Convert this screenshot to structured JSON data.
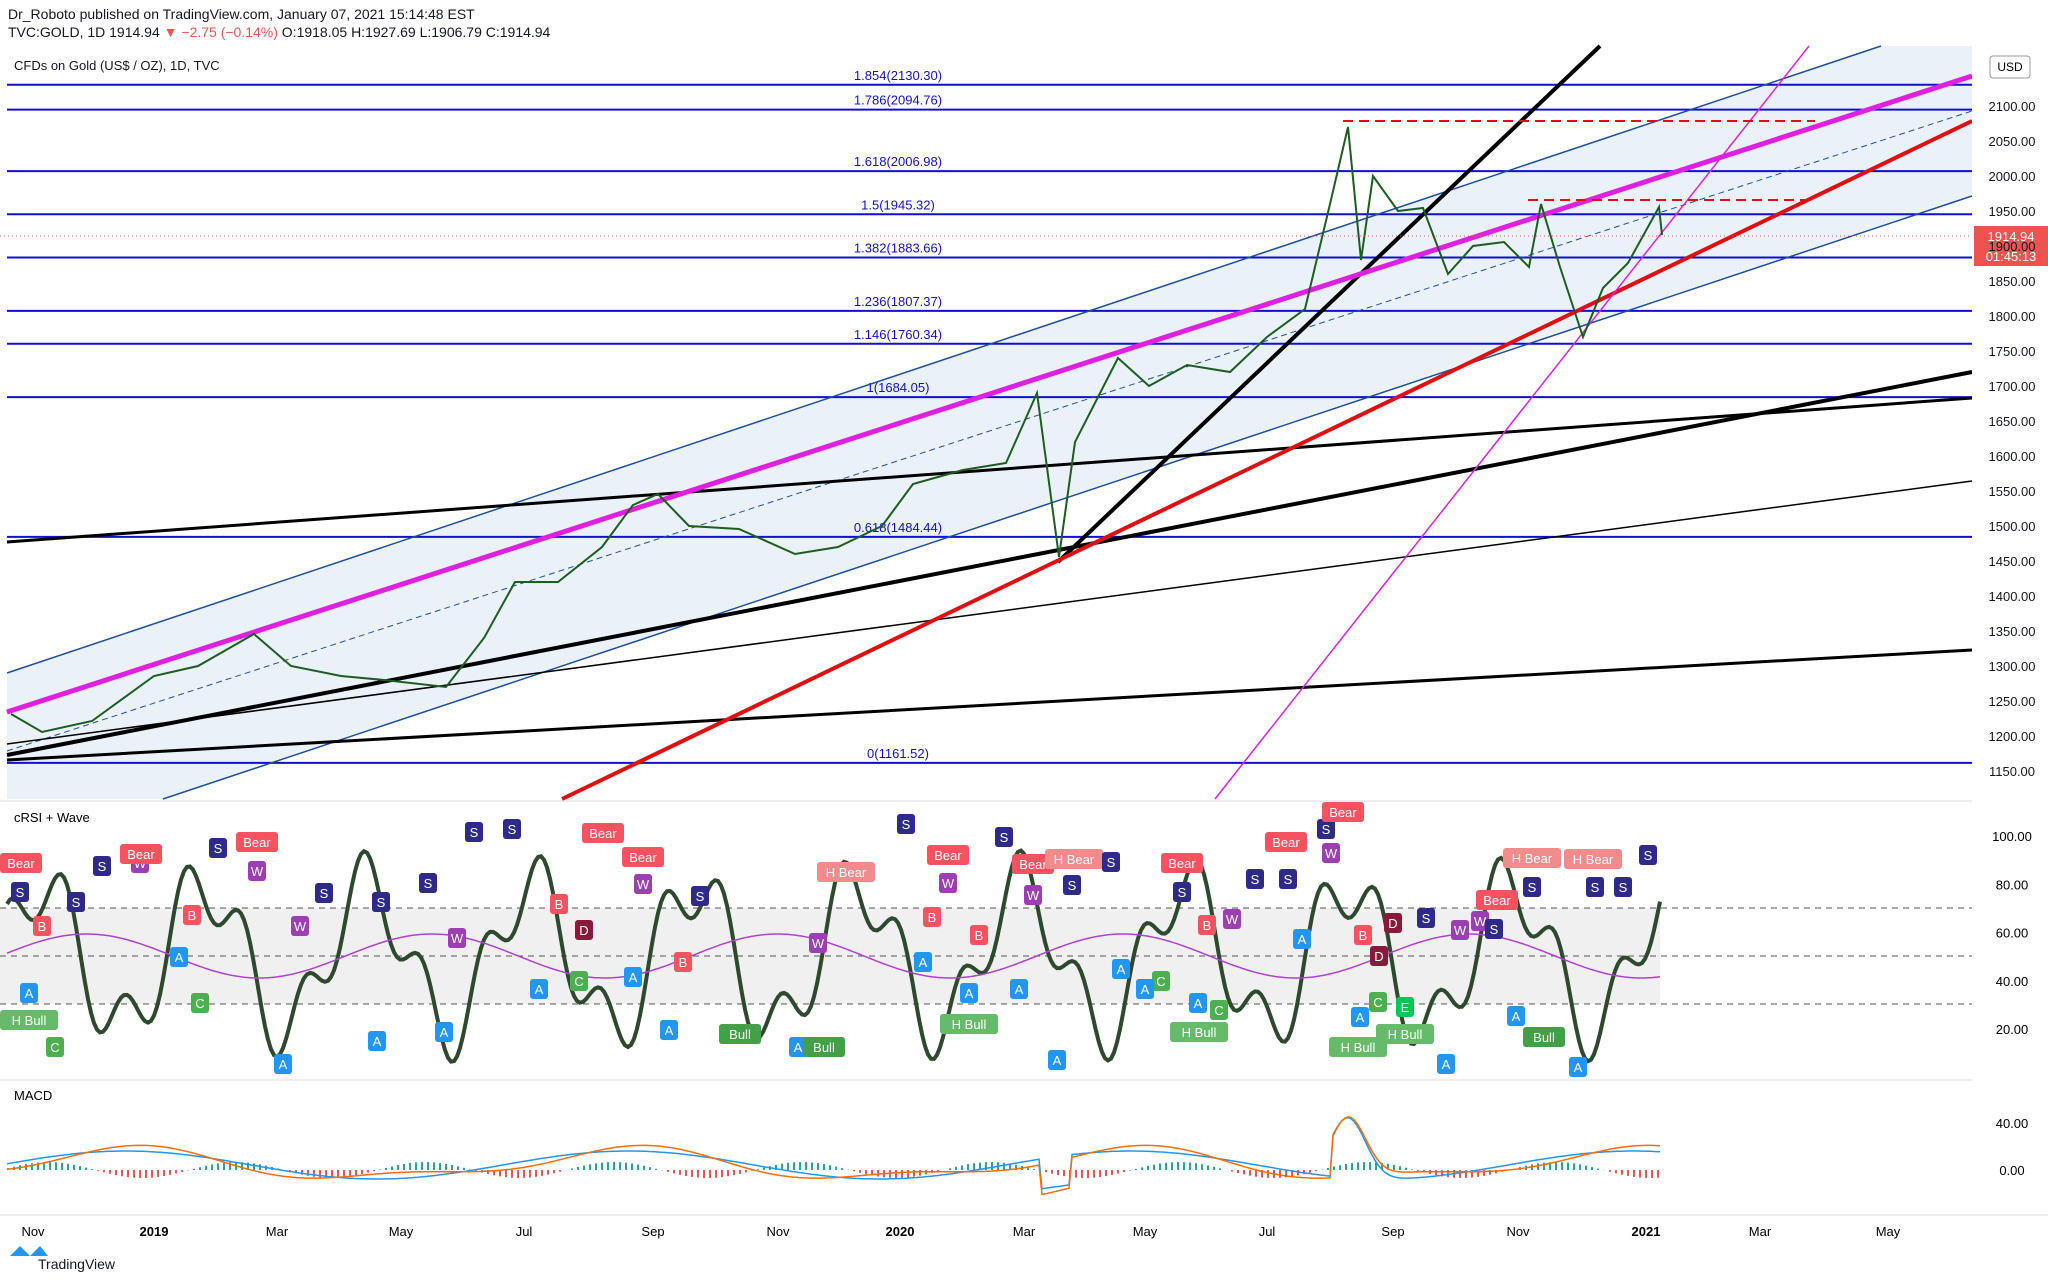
{
  "header": {
    "publisher": "Dr_Roboto published on TradingView.com, January 07, 2021 15:14:48 EST",
    "symbol": "TVC:GOLD, 1D",
    "price": "1914.94",
    "change": "▼ −2.75 (−0.14%)",
    "ohlc": "O:1918.05 H:1927.69 L:1906.79 C:1914.94"
  },
  "main_pane": {
    "title": "CFDs on Gold (US$ / OZ), 1D, TVC",
    "currency": "USD",
    "last_price": "1914.94",
    "countdown": "01:45:13",
    "price_axis": [
      "2100.00",
      "2050.00",
      "2000.00",
      "1950.00",
      "1900.00",
      "1850.00",
      "1800.00",
      "1750.00",
      "1700.00",
      "1650.00",
      "1600.00",
      "1550.00",
      "1500.00",
      "1450.00",
      "1400.00",
      "1350.00",
      "1300.00",
      "1250.00",
      "1200.00",
      "1150.00"
    ],
    "fib_levels": [
      {
        "label": "1.854(2130.30)",
        "price": 2130.3
      },
      {
        "label": "1.786(2094.76)",
        "price": 2094.76
      },
      {
        "label": "1.618(2006.98)",
        "price": 2006.98
      },
      {
        "label": "1.5(1945.32)",
        "price": 1945.32
      },
      {
        "label": "1.382(1883.66)",
        "price": 1883.66
      },
      {
        "label": "1.236(1807.37)",
        "price": 1807.37
      },
      {
        "label": "1.146(1760.34)",
        "price": 1760.34
      },
      {
        "label": "1(1684.05)",
        "price": 1684.05
      },
      {
        "label": "0.618(1484.44)",
        "price": 1484.44
      },
      {
        "label": "0(1161.52)",
        "price": 1161.52
      }
    ]
  },
  "crsi_pane": {
    "title": "cRSI + Wave",
    "axis": [
      "100.00",
      "80.00",
      "60.00",
      "40.00",
      "20.00"
    ],
    "signals": [
      "Bear",
      "S",
      "B",
      "A",
      "H Bull",
      "C",
      "S",
      "W",
      "Bear",
      "S",
      "B",
      "A",
      "C",
      "S",
      "Bear",
      "W",
      "S",
      "W",
      "A",
      "A",
      "S",
      "S",
      "S",
      "S",
      "A",
      "W",
      "Bear",
      "Bear",
      "W",
      "A",
      "B",
      "D",
      "C",
      "A",
      "S",
      "A",
      "B",
      "Bull",
      "A",
      "Bull",
      "W",
      "H Bear",
      "S",
      "Bear",
      "W",
      "S",
      "B",
      "A",
      "A",
      "H Bull",
      "B",
      "Bear",
      "H Bear",
      "W",
      "A",
      "A",
      "S",
      "S",
      "A",
      "Bear",
      "S",
      "C",
      "A",
      "B",
      "W",
      "A",
      "C",
      "H Bull",
      "S",
      "Bear",
      "S",
      "S",
      "Bear",
      "W",
      "A",
      "B",
      "D",
      "D",
      "C",
      "A",
      "E",
      "H Bull",
      "H Bull",
      "S",
      "W",
      "W",
      "S",
      "Bear",
      "A",
      "S",
      "H Bear",
      "A",
      "Bull",
      "S",
      "H Bear",
      "S",
      "A",
      "S"
    ]
  },
  "macd_pane": {
    "title": "MACD",
    "axis": [
      "40.00",
      "0.00"
    ]
  },
  "time_axis": [
    "Nov",
    "2019",
    "Mar",
    "May",
    "Jul",
    "Sep",
    "Nov",
    "2020",
    "Mar",
    "May",
    "Jul",
    "Sep",
    "Nov",
    "2021",
    "Mar",
    "May"
  ],
  "footer": {
    "brand": "TradingView"
  }
}
